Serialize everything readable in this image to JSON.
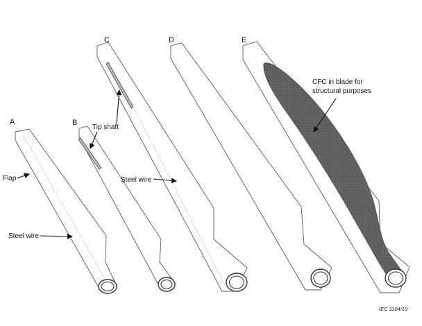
{
  "figure": {
    "blade_labels": [
      "A",
      "B",
      "C",
      "D",
      "E"
    ],
    "annotations": {
      "flap": "Flap",
      "steel_wire_a": "Steel wire",
      "tip_shaft": "Tip shaft",
      "steel_wire_c": "Steel wire",
      "cfc_line1": "CFC in blade for",
      "cfc_line2": "structural purposes"
    },
    "footer_code": "IEC   1104/10"
  },
  "colors": {
    "cfc_fill": "#5a5a5a",
    "outline": "#555555",
    "text": "#111111"
  }
}
